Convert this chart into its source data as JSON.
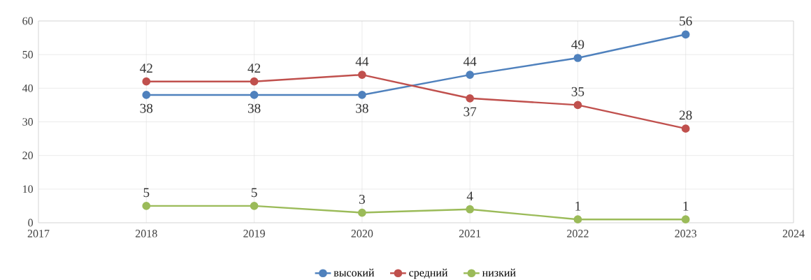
{
  "chart_data": {
    "type": "line",
    "x": [
      2018,
      2019,
      2020,
      2021,
      2022,
      2023
    ],
    "series": [
      {
        "name": "высокий",
        "color": "#4f81bd",
        "values": [
          38,
          38,
          38,
          44,
          49,
          56
        ]
      },
      {
        "name": "средний",
        "color": "#c0504d",
        "values": [
          42,
          42,
          44,
          37,
          35,
          28
        ]
      },
      {
        "name": "низкий",
        "color": "#9bbb59",
        "values": [
          5,
          5,
          3,
          4,
          1,
          1
        ]
      }
    ],
    "xlim": [
      2017,
      2024
    ],
    "ylim": [
      0,
      60
    ],
    "xticks": [
      2017,
      2018,
      2019,
      2020,
      2021,
      2022,
      2023,
      2024
    ],
    "yticks": [
      0,
      10,
      20,
      30,
      40,
      50,
      60
    ],
    "grid": true,
    "legend": "bottom",
    "marker": "circle",
    "data_labels": true
  }
}
